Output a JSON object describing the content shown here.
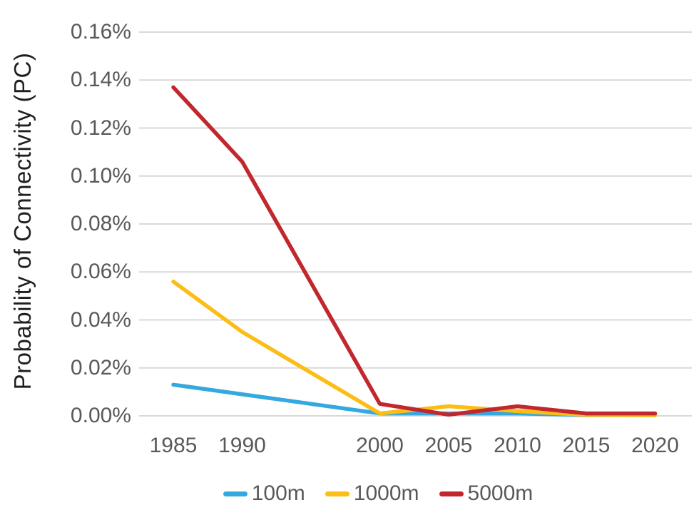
{
  "chart_data": {
    "type": "line",
    "title": "",
    "xlabel": "",
    "ylabel": "Probability of Connectivity (PC)",
    "y_unit": "percent",
    "ylim": [
      0,
      0.16
    ],
    "y_tick_step": 0.02,
    "y_ticks": [
      "0.00%",
      "0.02%",
      "0.04%",
      "0.06%",
      "0.08%",
      "0.10%",
      "0.12%",
      "0.14%",
      "0.16%"
    ],
    "x": [
      1985,
      1990,
      2000,
      2005,
      2010,
      2015,
      2020
    ],
    "x_tick_labels": [
      "1985",
      "1990",
      "2000",
      "2005",
      "2010",
      "2015",
      "2020"
    ],
    "x_axis_note": "linear year axis from 1985 to 2020 in 5-year steps; the 1995 position has no tick label",
    "grid": "horizontal-only",
    "legend_position": "bottom-center",
    "series": [
      {
        "name": "100m",
        "color": "#35A8DF",
        "values": [
          0.013,
          0.009,
          0.001,
          0.001,
          0.001,
          0.0003,
          0.0003
        ]
      },
      {
        "name": "1000m",
        "color": "#FBBD16",
        "values": [
          0.056,
          0.035,
          0.001,
          0.004,
          0.002,
          0.0004,
          0.0003
        ]
      },
      {
        "name": "5000m",
        "color": "#C1272D",
        "values": [
          0.137,
          0.106,
          0.005,
          0.0005,
          0.004,
          0.001,
          0.001
        ]
      }
    ]
  },
  "colors": {
    "gridline": "#D9D9D9",
    "tick_text": "#595959",
    "axis_title_text": "#1F1F1F",
    "background": "#FFFFFF"
  }
}
